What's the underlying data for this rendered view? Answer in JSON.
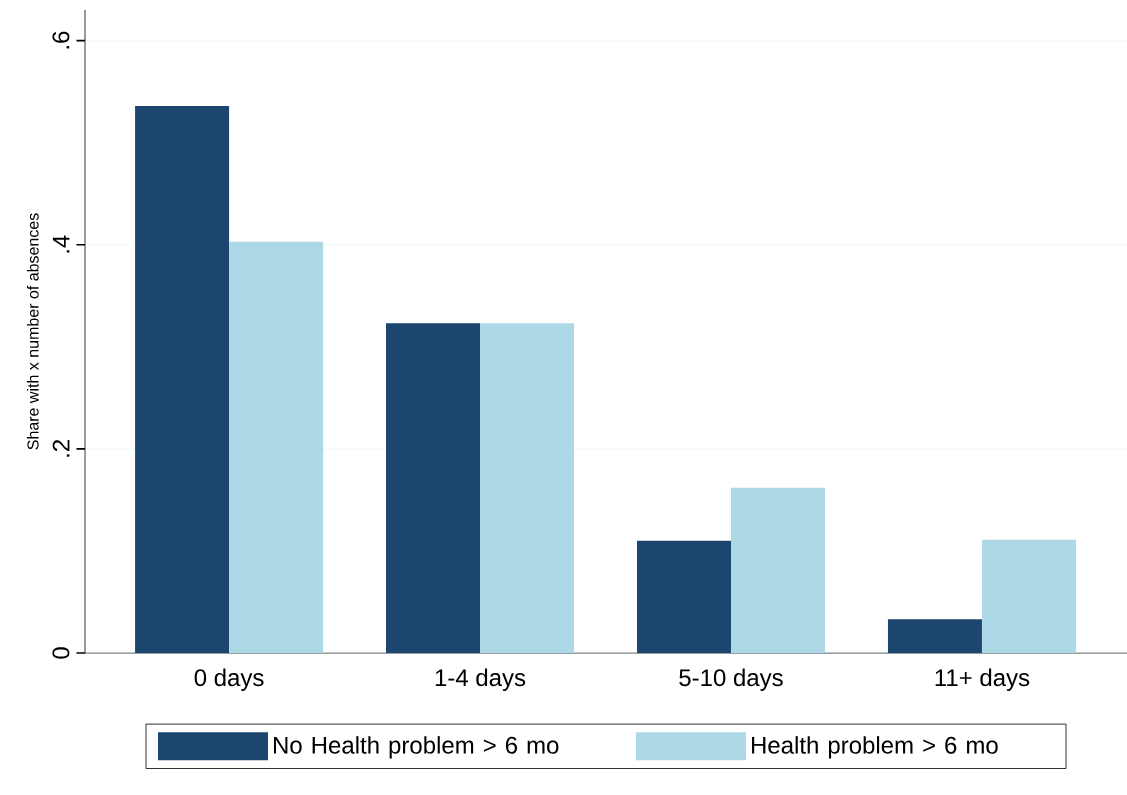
{
  "chart_data": {
    "type": "bar",
    "ylabel": "Share with x number of absences",
    "categories": [
      "0 days",
      "1-4 days",
      "5-10 days",
      "11+ days"
    ],
    "series": [
      {
        "name": "No Health problem > 6 mo",
        "color": "#1c4570",
        "values": [
          0.536,
          0.323,
          0.11,
          0.033
        ]
      },
      {
        "name": "Health problem > 6 mo",
        "color": "#add8e6",
        "values": [
          0.403,
          0.323,
          0.162,
          0.111
        ]
      }
    ],
    "ylim": [
      0,
      0.63
    ],
    "yticks": [
      {
        "value": 0,
        "label": "0"
      },
      {
        "value": 0.2,
        "label": ".2"
      },
      {
        "value": 0.4,
        "label": ".4"
      },
      {
        "value": 0.6,
        "label": ".6"
      }
    ],
    "grid": "y",
    "legend": "bottom"
  }
}
